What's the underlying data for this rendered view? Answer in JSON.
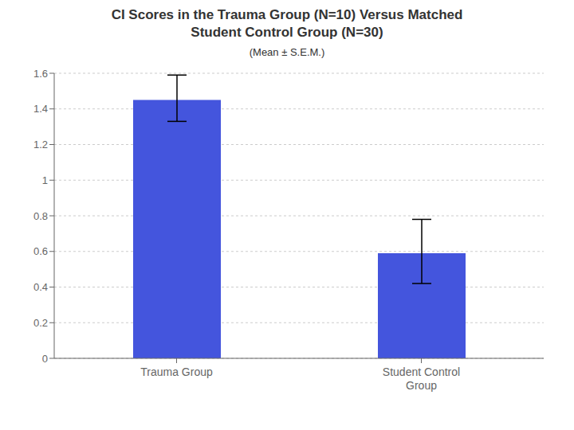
{
  "chart_data": {
    "type": "bar",
    "title": "CI Scores in the Trauma Group (N=10) Versus Matched\nStudent Control Group (N=30)",
    "subtitle": "(Mean ± S.E.M.)",
    "categories": [
      "Trauma Group",
      "Student Control\nGroup"
    ],
    "values": [
      1.45,
      0.59
    ],
    "errors_up": [
      0.14,
      0.19
    ],
    "errors_down": [
      0.12,
      0.17
    ],
    "color": "#4455DD",
    "ylim": [
      0,
      1.6
    ],
    "yticks": [
      0,
      0.2,
      0.4,
      0.6,
      0.8,
      1,
      1.2,
      1.4,
      1.6
    ],
    "grid": true
  }
}
